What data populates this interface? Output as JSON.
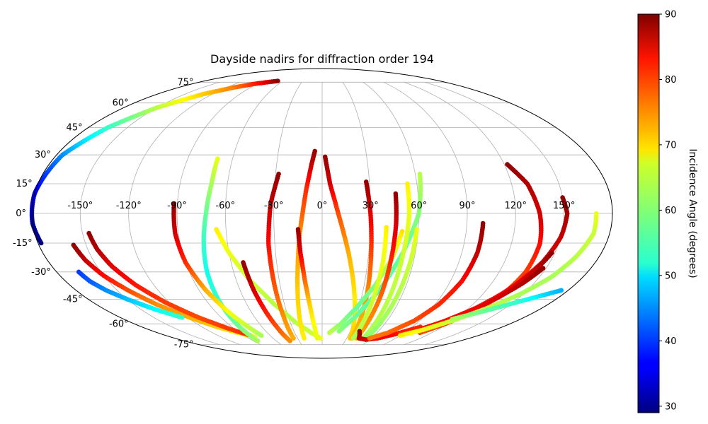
{
  "chart_data": {
    "type": "scatter",
    "projection": "mollweide",
    "title": "Dayside nadirs for diffraction order 194",
    "lon_ticks": [
      "-150°",
      "-120°",
      "-90°",
      "-60°",
      "-30°",
      "0°",
      "30°",
      "60°",
      "90°",
      "120°",
      "150°"
    ],
    "lat_ticks": [
      "-75°",
      "-60°",
      "-45°",
      "-30°",
      "-15°",
      "0°",
      "15°",
      "30°",
      "45°",
      "60°",
      "75°"
    ],
    "grid": true,
    "colorbar": {
      "label": "Incidence Angle (degrees)",
      "colormap": "jet",
      "range": [
        29,
        90
      ],
      "ticks": [
        "30",
        "40",
        "50",
        "60",
        "70",
        "80",
        "90"
      ]
    },
    "tracks": [
      {
        "lon": [
          -178,
          -180,
          -180,
          -176,
          -165,
          -150,
          -130,
          -110,
          -95,
          -80,
          -68
        ],
        "lat": [
          -15,
          -5,
          10,
          30,
          45,
          57,
          66,
          71,
          73.5,
          75,
          76
        ],
        "inc": [
          29,
          31,
          35,
          45,
          55,
          63,
          70,
          75,
          80,
          85,
          89
        ]
      },
      {
        "lon": [
          -158,
          -155,
          -150,
          -142,
          -132,
          -118,
          -105,
          -92,
          -80
        ],
        "lat": [
          -16,
          -24,
          -32,
          -40,
          -48,
          -56,
          -62,
          -66,
          -69
        ],
        "inc": [
          89,
          86,
          82,
          78,
          74,
          72,
          70,
          68,
          66
        ]
      },
      {
        "lon": [
          -165,
          -163,
          -158,
          -150,
          -138,
          -125
        ],
        "lat": [
          -30,
          -35,
          -40,
          -45,
          -51,
          -56
        ],
        "inc": [
          40,
          42,
          45,
          48,
          52,
          55
        ]
      },
      {
        "lon": [
          -146,
          -144,
          -140,
          -133,
          -123,
          -110,
          -96,
          -83
        ],
        "lat": [
          -10,
          -18,
          -27,
          -37,
          -47,
          -56,
          -63,
          -68
        ],
        "inc": [
          89,
          87,
          84,
          81,
          79,
          78,
          79,
          80
        ]
      },
      {
        "lon": [
          -70,
          -70,
          -72,
          -75,
          -78,
          -80,
          -82,
          -84
        ],
        "lat": [
          28,
          15,
          0,
          -15,
          -30,
          -45,
          -60,
          -72
        ],
        "inc": [
          66,
          62,
          58,
          55,
          53,
          55,
          58,
          62
        ]
      },
      {
        "lon": [
          -92,
          -92,
          -90,
          -85,
          -78,
          -70
        ],
        "lat": [
          5,
          -10,
          -25,
          -40,
          -55,
          -68
        ],
        "inc": [
          89,
          85,
          80,
          72,
          66,
          62
        ]
      },
      {
        "lon": [
          -66,
          -60,
          -50,
          -38,
          -25,
          -12,
          -2
        ],
        "lat": [
          -8,
          -20,
          -35,
          -48,
          -59,
          -66,
          -70
        ],
        "inc": [
          68,
          66,
          64,
          63,
          63,
          64,
          66
        ]
      },
      {
        "lon": [
          -52,
          -50,
          -47,
          -44,
          -42
        ],
        "lat": [
          -25,
          -40,
          -55,
          -67,
          -72
        ],
        "inc": [
          89,
          85,
          80,
          76,
          74
        ]
      },
      {
        "lon": [
          -28,
          -32,
          -34,
          -34,
          -34,
          -35
        ],
        "lat": [
          20,
          5,
          -15,
          -35,
          -55,
          -70
        ],
        "inc": [
          89,
          86,
          82,
          78,
          74,
          72
        ]
      },
      {
        "lon": [
          -5,
          -7,
          -10,
          -14,
          -18,
          -22
        ],
        "lat": [
          32,
          25,
          12,
          -10,
          -40,
          -70
        ],
        "inc": [
          89,
          86,
          80,
          74,
          70,
          68
        ]
      },
      {
        "lon": [
          -15,
          -14,
          -12,
          -10,
          -8,
          -6
        ],
        "lat": [
          -8,
          -20,
          -35,
          -48,
          -60,
          -70
        ],
        "inc": [
          89,
          84,
          76,
          70,
          67,
          66
        ]
      },
      {
        "lon": [
          2,
          5,
          10,
          17,
          25,
          34
        ],
        "lat": [
          29,
          15,
          0,
          -20,
          -45,
          -70
        ],
        "inc": [
          89,
          85,
          78,
          72,
          68,
          70
        ]
      },
      {
        "lon": [
          28,
          30,
          32,
          34,
          36
        ],
        "lat": [
          16,
          0,
          -25,
          -48,
          -70
        ],
        "inc": [
          89,
          84,
          77,
          73,
          71
        ]
      },
      {
        "lon": [
          50,
          46,
          38,
          28,
          18,
          8
        ],
        "lat": [
          -9,
          -22,
          -37,
          -50,
          -60,
          -66
        ],
        "inc": [
          69,
          64,
          60,
          58,
          60,
          63
        ]
      },
      {
        "lon": [
          63,
          60,
          52,
          42,
          30,
          18
        ],
        "lat": [
          20,
          0,
          -20,
          -40,
          -55,
          -65
        ],
        "inc": [
          63,
          60,
          58,
          57,
          58,
          60
        ]
      },
      {
        "lon": [
          46,
          46,
          45,
          44,
          42
        ],
        "lat": [
          10,
          -5,
          -25,
          -45,
          -70
        ],
        "inc": [
          89,
          85,
          80,
          76,
          72
        ]
      },
      {
        "lon": [
          54,
          54,
          52,
          50
        ],
        "lat": [
          15,
          0,
          -25,
          -70
        ],
        "inc": [
          68,
          66,
          64,
          62
        ]
      },
      {
        "lon": [
          40,
          40,
          39,
          38
        ],
        "lat": [
          -7,
          -25,
          -50,
          -70
        ],
        "inc": [
          68,
          66,
          64,
          62
        ]
      },
      {
        "lon": [
          59,
          58,
          56,
          54
        ],
        "lat": [
          -8,
          -25,
          -50,
          -70
        ],
        "inc": [
          66,
          64,
          62,
          60
        ]
      },
      {
        "lon": [
          40,
          45,
          55,
          68,
          82,
          98
        ],
        "lat": [
          -65,
          -70,
          -71,
          -70,
          -67,
          -62
        ],
        "inc": [
          89,
          87,
          85,
          83,
          82,
          80
        ]
      },
      {
        "lon": [
          100,
          100,
          98,
          93,
          85,
          72,
          58
        ],
        "lat": [
          -5,
          -20,
          -35,
          -48,
          -58,
          -66,
          -70
        ],
        "inc": [
          89,
          86,
          82,
          80,
          78,
          76,
          75
        ]
      },
      {
        "lon": [
          122,
          130,
          135,
          138,
          138,
          135,
          128,
          118,
          105
        ],
        "lat": [
          25,
          15,
          0,
          -15,
          -30,
          -42,
          -52,
          -60,
          -65
        ],
        "inc": [
          89,
          87,
          85,
          82,
          79,
          77,
          76,
          75,
          76
        ]
      },
      {
        "lon": [
          150,
          152,
          150,
          145,
          137,
          128,
          118,
          107
        ],
        "lat": [
          8,
          0,
          -12,
          -25,
          -38,
          -50,
          -60,
          -66
        ],
        "inc": [
          89,
          88,
          86,
          84,
          82,
          80,
          79,
          78
        ]
      },
      {
        "lon": [
          148,
          143,
          136,
          126,
          114,
          102
        ],
        "lat": [
          -20,
          -30,
          -40,
          -50,
          -58,
          -64
        ],
        "inc": [
          89,
          86,
          83,
          80,
          78,
          76
        ]
      },
      {
        "lon": [
          148,
          142,
          134,
          124,
          112,
          100,
          88
        ],
        "lat": [
          -28,
          -36,
          -44,
          -52,
          -59,
          -64,
          -67
        ],
        "inc": [
          89,
          87,
          85,
          83,
          82,
          81,
          80
        ]
      },
      {
        "lon": [
          170,
          170,
          165,
          158,
          148,
          136,
          120,
          105,
          90
        ],
        "lat": [
          0,
          -10,
          -22,
          -33,
          -42,
          -50,
          -58,
          -64,
          -68
        ],
        "inc": [
          66,
          64,
          63,
          62,
          62,
          63,
          64,
          66,
          68
        ]
      },
      {
        "lon": [
          175,
          165,
          152,
          136,
          118
        ],
        "lat": [
          -40,
          -43,
          -47,
          -52,
          -57
        ],
        "inc": [
          47,
          50,
          55,
          58,
          62
        ]
      }
    ]
  }
}
